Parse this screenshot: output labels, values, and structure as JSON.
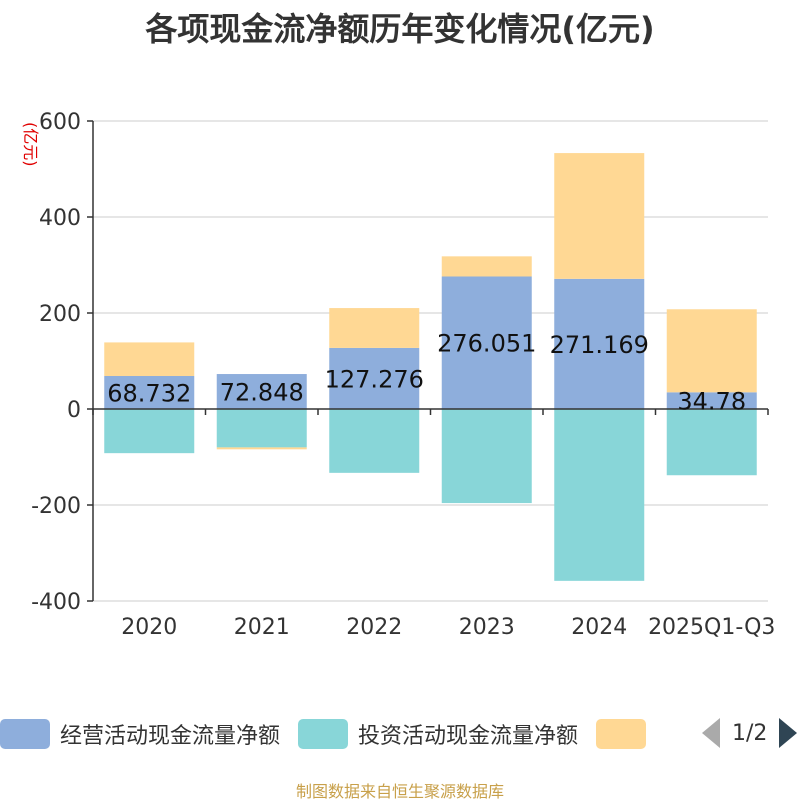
{
  "title": "各项现金流净额历年变化情况(亿元)",
  "unit_label": "(亿元)",
  "source": "制图数据来自恒生聚源数据库",
  "legend": {
    "items": [
      {
        "label": "经营活动现金流量净额",
        "color": "#8eaedc"
      },
      {
        "label": "投资活动现金流量净额",
        "color": "#88d6d8"
      },
      {
        "label": "",
        "color": "#ffd894"
      }
    ],
    "page": "1/2"
  },
  "chart_data": {
    "type": "bar",
    "stacked": true,
    "categories": [
      "2020",
      "2021",
      "2022",
      "2023",
      "2024",
      "2025Q1-Q3"
    ],
    "ylim": [
      -400,
      600
    ],
    "yticks": [
      "600",
      "400",
      "200",
      "0",
      "-200",
      "-400"
    ],
    "series": [
      {
        "name": "经营活动现金流量净额",
        "color": "#8eaedc",
        "values": [
          68.732,
          72.848,
          127.276,
          276.051,
          271.169,
          34.78
        ],
        "labels": [
          "68.732",
          "72.848",
          "127.276",
          "276.051",
          "271.169",
          "34.78"
        ]
      },
      {
        "name": "投资活动现金流量净额",
        "color": "#88d6d8",
        "values": [
          -92,
          -80,
          -133,
          -196,
          -358,
          -138
        ]
      },
      {
        "color": "#ffd894",
        "values": [
          70,
          -4,
          83,
          42,
          262,
          173
        ]
      }
    ],
    "grid": true
  }
}
